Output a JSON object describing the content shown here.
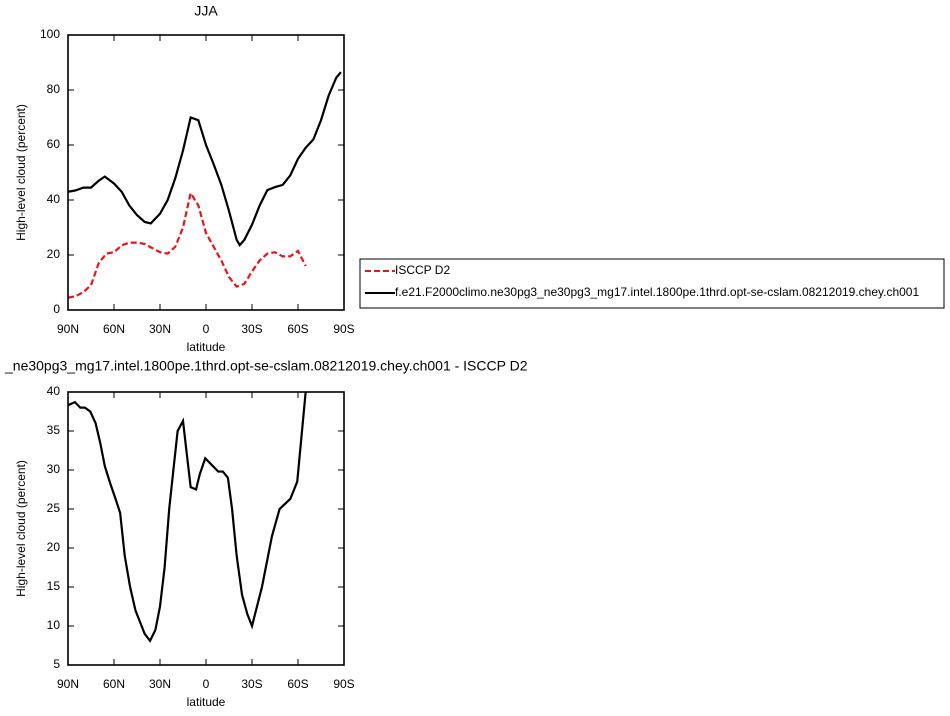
{
  "chart_data": [
    {
      "type": "line",
      "title": "JJA",
      "xlabel": "latitude",
      "ylabel": "High-level cloud (percent)",
      "xlim": [
        90,
        -90
      ],
      "ylim": [
        0,
        100
      ],
      "xticks": [
        {
          "value": 90,
          "label": "90N"
        },
        {
          "value": 60,
          "label": "60N"
        },
        {
          "value": 30,
          "label": "30N"
        },
        0,
        {
          "value": -30,
          "label": "30S"
        },
        {
          "value": -60,
          "label": "60S"
        },
        {
          "value": -90,
          "label": "90S"
        }
      ],
      "yticks": [
        0,
        20,
        40,
        60,
        80,
        100
      ],
      "legend": "right",
      "series": [
        {
          "name": "ISCCP D2",
          "color": "#e8141b",
          "dashed": true,
          "x": [
            90,
            85,
            80,
            75,
            70,
            65,
            60,
            55,
            50,
            45,
            40,
            35,
            30,
            25,
            20,
            15,
            10,
            5,
            0,
            -5,
            -10,
            -15,
            -20,
            -25,
            -30,
            -35,
            -40,
            -45,
            -50,
            -55,
            -60,
            -65
          ],
          "values": [
            4.5,
            5,
            6.5,
            9,
            17,
            20.5,
            21,
            23.5,
            24.5,
            24.5,
            24,
            22.5,
            21,
            20.5,
            23,
            30,
            42.5,
            38,
            28,
            23,
            18,
            12,
            8.5,
            9.5,
            14,
            18,
            20.5,
            21,
            19.5,
            19.5,
            21.5,
            16
          ]
        },
        {
          "name": "f.e21.F2000climo.ne30pg3_ne30pg3_mg17.intel.1800pe.1thrd.opt-se-cslam.08212019.chey.ch001",
          "color": "#000000",
          "dashed": false,
          "x": [
            90,
            85,
            80,
            75,
            70,
            66,
            60,
            55,
            50,
            45,
            40,
            36,
            30,
            25,
            20,
            15,
            10,
            5,
            0,
            -5,
            -10,
            -15,
            -20,
            -22,
            -25,
            -30,
            -35,
            -40,
            -45,
            -50,
            -55,
            -60,
            -65,
            -70,
            -75,
            -80,
            -85,
            -88
          ],
          "values": [
            43,
            43.5,
            44.5,
            44.5,
            47,
            48.5,
            46,
            43,
            38,
            34.5,
            32,
            31.5,
            35,
            40,
            48,
            58,
            70,
            69,
            60,
            53,
            45.5,
            36,
            25.5,
            23.6,
            25.5,
            31,
            38,
            43.6,
            44.7,
            45.5,
            49,
            55,
            59,
            62,
            69,
            78,
            84.5,
            86.5
          ]
        }
      ]
    },
    {
      "type": "line",
      "title": "_ne30pg3_mg17.intel.1800pe.1thrd.opt-se-cslam.08212019.chey.ch001 - ISCCP D2",
      "xlabel": "latitude",
      "ylabel": "High-level cloud (percent)",
      "xlim": [
        90,
        -90
      ],
      "ylim": [
        5,
        40
      ],
      "xticks": [
        {
          "value": 90,
          "label": "90N"
        },
        {
          "value": 60,
          "label": "60N"
        },
        {
          "value": 30,
          "label": "30N"
        },
        0,
        {
          "value": -30,
          "label": "30S"
        },
        {
          "value": -60,
          "label": "60S"
        },
        {
          "value": -90,
          "label": "90S"
        }
      ],
      "yticks": [
        5,
        10,
        15,
        20,
        25,
        30,
        35,
        40
      ],
      "series": [
        {
          "color": "#000000",
          "dashed": false,
          "x": [
            90,
            85.5,
            82,
            79,
            75.5,
            72,
            69,
            66,
            62.5,
            59,
            56,
            53,
            49.5,
            46,
            43,
            40,
            36.5,
            33,
            30,
            27,
            24,
            21,
            18.5,
            15,
            12.5,
            10,
            6.5,
            4,
            0.5,
            -8,
            -11,
            -14.3,
            -17,
            -20,
            -23.5,
            -27,
            -30,
            -36.5,
            -43,
            -48,
            -55,
            -59.5,
            -65
          ],
          "values": [
            38.3,
            38.7,
            38,
            38,
            37.5,
            36,
            33.5,
            30.5,
            28.3,
            26.3,
            24.5,
            19,
            15,
            12,
            10.5,
            9,
            8.1,
            9.5,
            12.5,
            17.5,
            25,
            30.5,
            35,
            36.3,
            32,
            27.8,
            27.5,
            29.5,
            31.5,
            29.8,
            29.8,
            29,
            25,
            19,
            14,
            11.5,
            10,
            15,
            21.5,
            25,
            26.3,
            28.5,
            40
          ]
        }
      ]
    }
  ]
}
